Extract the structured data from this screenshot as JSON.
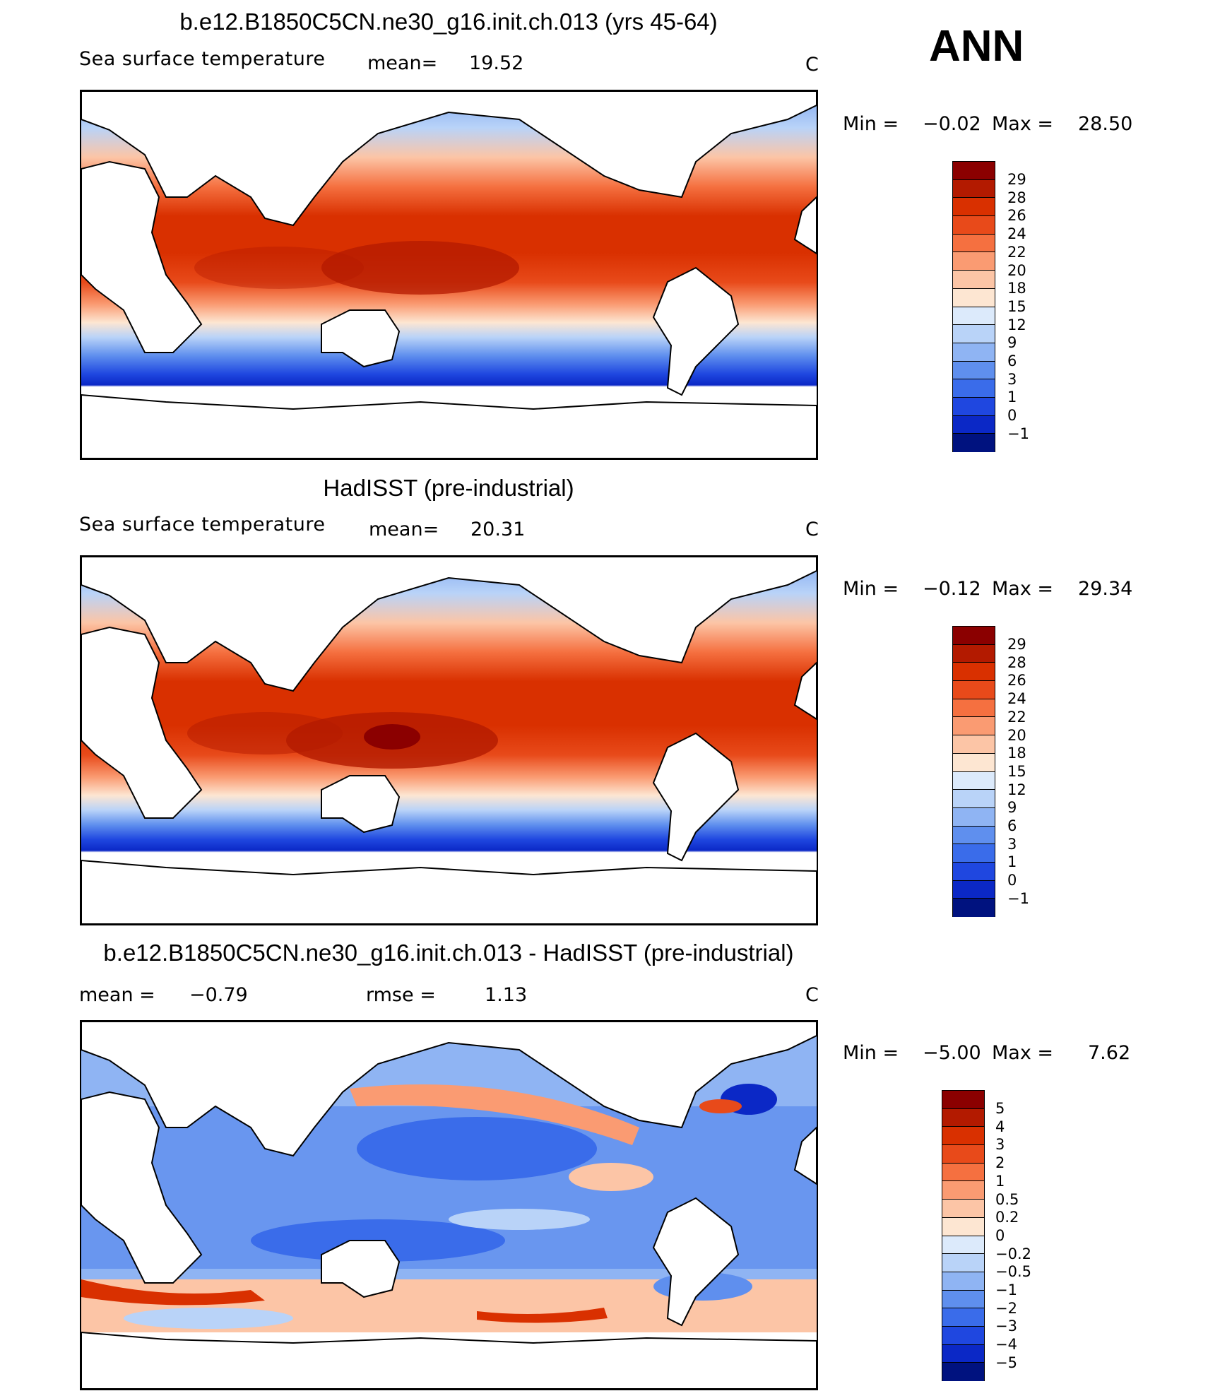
{
  "season": "ANN",
  "panels": [
    {
      "title": "b.e12.B1850C5CN.ne30_g16.init.ch.013 (yrs 45-64)",
      "variable": "Sea surface temperature",
      "stat_label": "mean=",
      "stat_value": "19.52",
      "units": "C",
      "min_label": "Min =",
      "min_value": "−0.02",
      "max_label": "Max =",
      "max_value": "28.50",
      "levels": [
        "29",
        "28",
        "26",
        "24",
        "22",
        "20",
        "18",
        "15",
        "12",
        "9",
        "6",
        "3",
        "1",
        "0",
        "−1"
      ]
    },
    {
      "title": "HadISST (pre-industrial)",
      "variable": "Sea surface temperature",
      "stat_label": "mean=",
      "stat_value": "20.31",
      "units": "C",
      "min_label": "Min =",
      "min_value": "−0.12",
      "max_label": "Max =",
      "max_value": "29.34",
      "levels": [
        "29",
        "28",
        "26",
        "24",
        "22",
        "20",
        "18",
        "15",
        "12",
        "9",
        "6",
        "3",
        "1",
        "0",
        "−1"
      ]
    },
    {
      "title": "b.e12.B1850C5CN.ne30_g16.init.ch.013 - HadISST (pre-industrial)",
      "mean_label": "mean =",
      "mean_value": "−0.79",
      "rmse_label": "rmse =",
      "rmse_value": "1.13",
      "units": "C",
      "min_label": "Min =",
      "min_value": "−5.00",
      "max_label": "Max =",
      "max_value": "7.62",
      "levels": [
        "5",
        "4",
        "3",
        "2",
        "1",
        "0.5",
        "0.2",
        "0",
        "−0.2",
        "−0.5",
        "−1",
        "−2",
        "−3",
        "−4",
        "−5"
      ]
    }
  ],
  "colors": {
    "sst_scale": [
      "#8b0000",
      "#b31a00",
      "#d93000",
      "#e84a1a",
      "#f57040",
      "#fa9b72",
      "#fcc5a6",
      "#fde6d2",
      "#dceafb",
      "#b9d3f8",
      "#8fb4f3",
      "#5f8fee",
      "#3a6cea",
      "#1f47e0",
      "#0b28c6",
      "#00127f"
    ],
    "diff_scale": [
      "#8b0000",
      "#b31a00",
      "#d93000",
      "#e84a1a",
      "#f57040",
      "#fa9b72",
      "#fcc5a6",
      "#fde6d2",
      "#dceafb",
      "#b9d3f8",
      "#8fb4f3",
      "#5f8fee",
      "#3a6cea",
      "#1f47e0",
      "#0b28c6",
      "#00127f"
    ]
  }
}
